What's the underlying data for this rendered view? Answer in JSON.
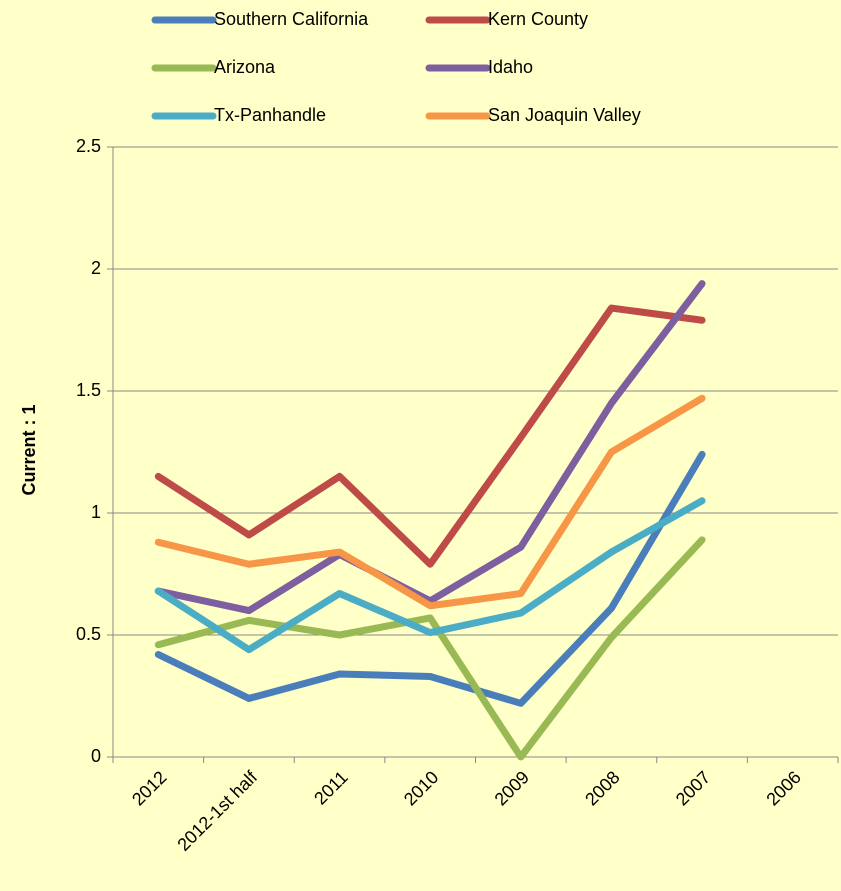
{
  "chart_data": {
    "type": "line",
    "y_label": "Current : 1",
    "categories": [
      "2012",
      "2012-1st half",
      "2011",
      "2010",
      "2009",
      "2008",
      "2007",
      "2006"
    ],
    "series": [
      {
        "name": "Southern California",
        "color": "#4a7ebb",
        "values": [
          0.42,
          0.24,
          0.34,
          0.33,
          0.22,
          0.61,
          1.24,
          null
        ]
      },
      {
        "name": "Kern County",
        "color": "#be4b48",
        "values": [
          1.15,
          0.91,
          1.15,
          0.79,
          1.31,
          1.84,
          1.79,
          null
        ]
      },
      {
        "name": "Arizona",
        "color": "#98b954",
        "values": [
          0.46,
          0.56,
          0.5,
          0.57,
          0,
          0.49,
          0.89,
          null
        ]
      },
      {
        "name": "Idaho",
        "color": "#7d5fa0",
        "values": [
          0.68,
          0.6,
          0.83,
          0.64,
          0.86,
          1.45,
          1.94,
          null
        ]
      },
      {
        "name": "Tx-Panhandle",
        "color": "#4bacc6",
        "values": [
          0.68,
          0.44,
          0.67,
          0.51,
          0.59,
          0.84,
          1.05,
          null
        ]
      },
      {
        "name": "San Joaquin Valley",
        "color": "#f79646",
        "values": [
          0.88,
          0.79,
          0.84,
          0.62,
          0.67,
          1.25,
          1.47,
          null
        ]
      }
    ],
    "ylim": [
      0,
      2.5
    ],
    "yticks": [
      0,
      0.5,
      1,
      1.5,
      2,
      2.5
    ],
    "grid": true,
    "legend": "top"
  }
}
